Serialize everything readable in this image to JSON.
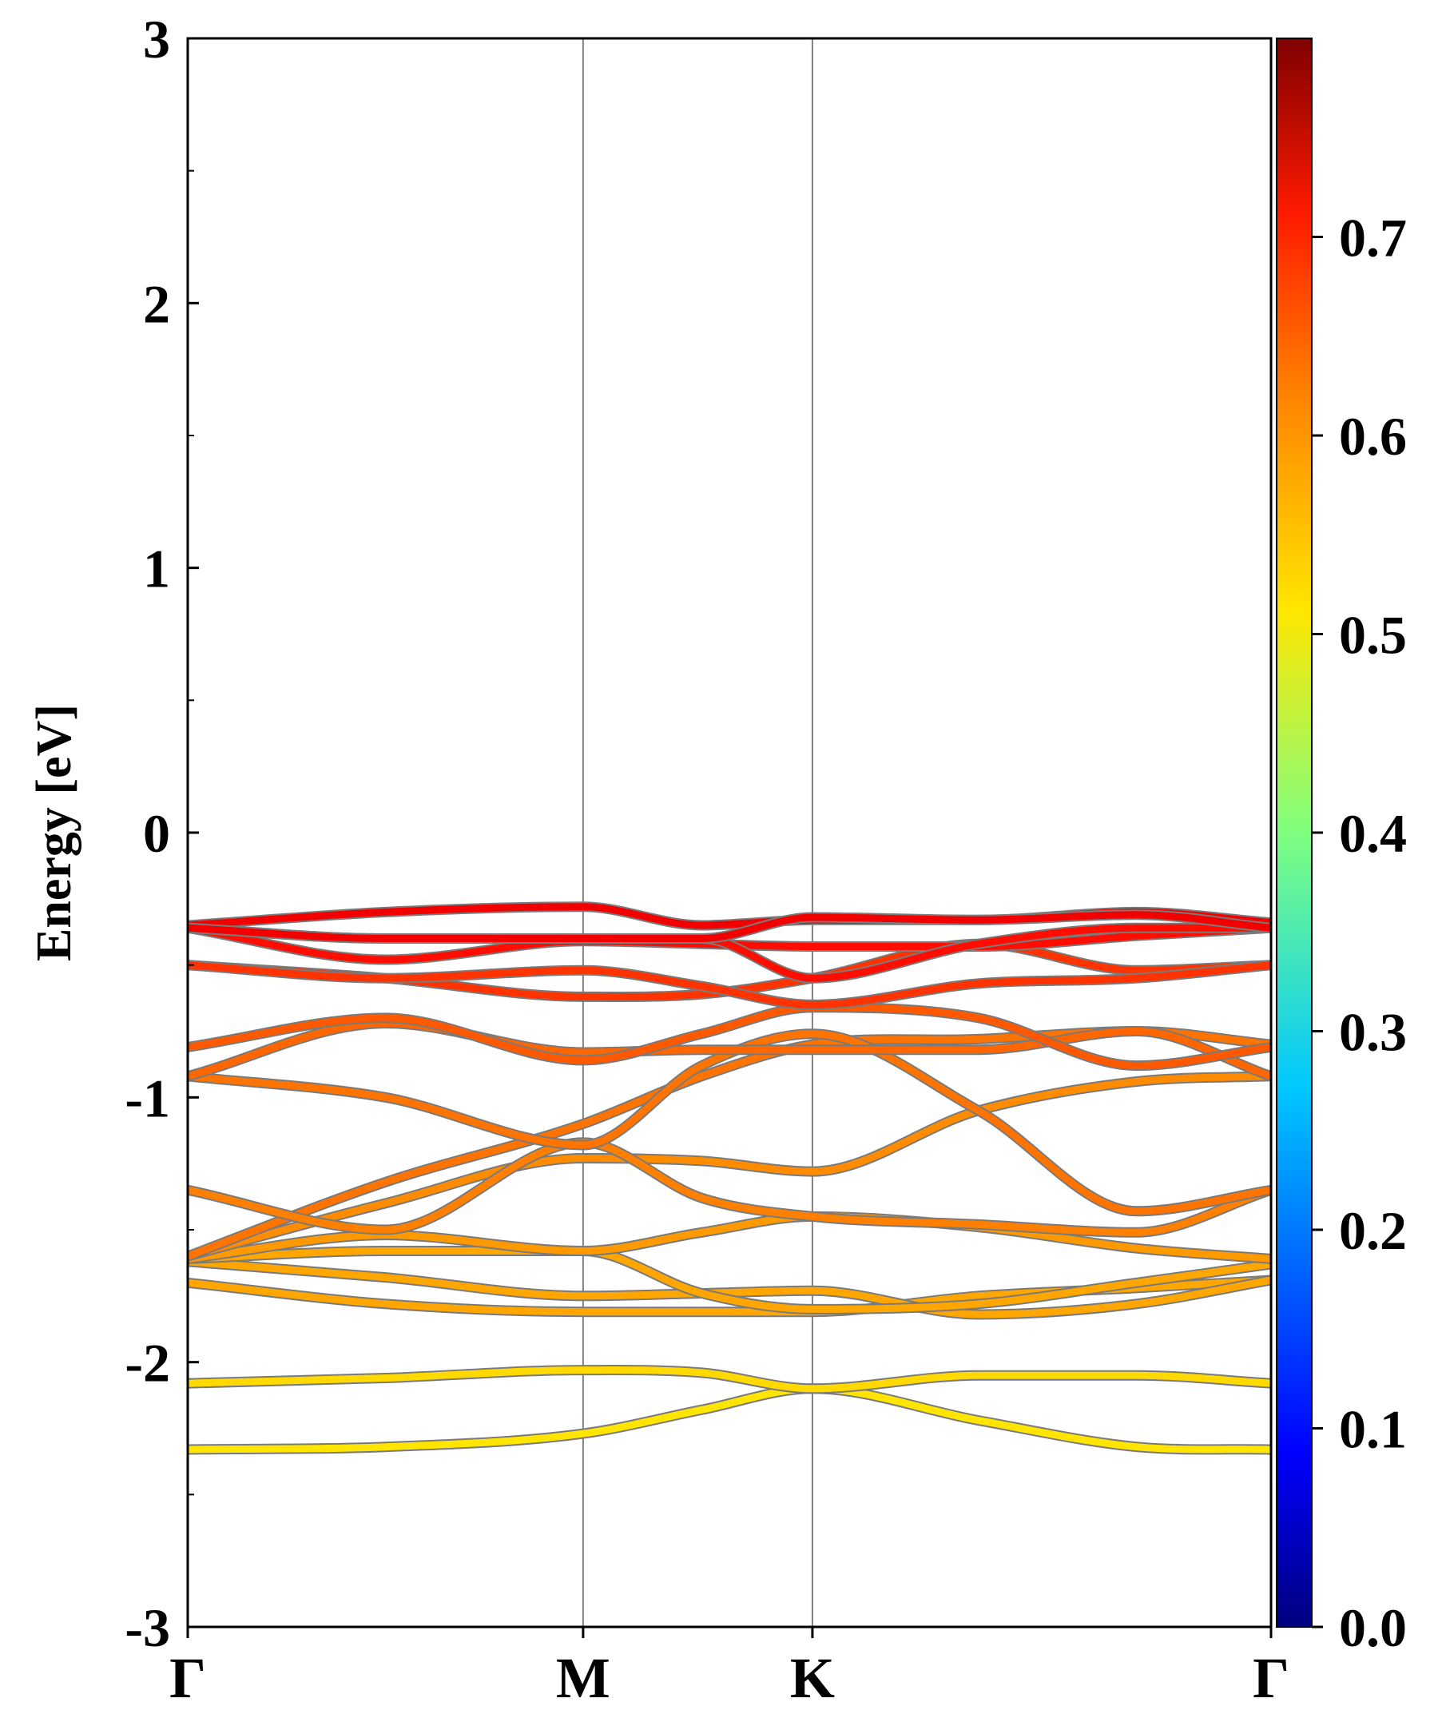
{
  "chart_data": {
    "type": "line",
    "ylabel": "Energy [eV]",
    "ylim": [
      -3,
      3
    ],
    "yticks": [
      -3,
      -2,
      -1,
      0,
      1,
      2,
      3
    ],
    "ytick_labels": [
      "-3",
      "-2",
      "-1",
      "0",
      "1",
      "2",
      "3"
    ],
    "y_minor_step": 0.5,
    "kpoints": [
      {
        "label": "Γ",
        "x": 0.0
      },
      {
        "label": "M",
        "x": 1.0
      },
      {
        "label": "K",
        "x": 1.58
      },
      {
        "label": "Γ",
        "x": 2.74
      }
    ],
    "xlim": [
      0,
      2.74
    ],
    "colorbar": {
      "colormap": "jet",
      "range": [
        0.0,
        0.8
      ],
      "ticks": [
        0.0,
        0.1,
        0.2,
        0.3,
        0.4,
        0.5,
        0.6,
        0.7
      ],
      "tick_labels": [
        "0.0",
        "0.1",
        "0.2",
        "0.3",
        "0.4",
        "0.5",
        "0.6",
        "0.7"
      ]
    },
    "grid": false,
    "bands": [
      {
        "x": [
          0,
          0.5,
          1.0,
          1.3,
          1.58,
          2.0,
          2.4,
          2.74
        ],
        "y": [
          -2.33,
          -2.32,
          -2.27,
          -2.18,
          -2.1,
          -2.22,
          -2.32,
          -2.33
        ],
        "c": 0.52
      },
      {
        "x": [
          0,
          0.5,
          1.0,
          1.3,
          1.58,
          2.0,
          2.4,
          2.74
        ],
        "y": [
          -2.08,
          -2.06,
          -2.03,
          -2.04,
          -2.1,
          -2.05,
          -2.05,
          -2.08
        ],
        "c": 0.53
      },
      {
        "x": [
          0,
          0.5,
          1.0,
          1.3,
          1.58,
          2.0,
          2.4,
          2.74
        ],
        "y": [
          -1.7,
          -1.78,
          -1.81,
          -1.81,
          -1.81,
          -1.75,
          -1.72,
          -1.69
        ],
        "c": 0.57
      },
      {
        "x": [
          0,
          0.5,
          1.0,
          1.3,
          1.58,
          2.0,
          2.4,
          2.74
        ],
        "y": [
          -1.62,
          -1.68,
          -1.75,
          -1.74,
          -1.73,
          -1.82,
          -1.78,
          -1.69
        ],
        "c": 0.57
      },
      {
        "x": [
          0,
          0.5,
          1.0,
          1.3,
          1.58,
          2.0,
          2.4,
          2.74
        ],
        "y": [
          -1.61,
          -1.58,
          -1.58,
          -1.74,
          -1.8,
          -1.78,
          -1.7,
          -1.63
        ],
        "c": 0.57
      },
      {
        "x": [
          0,
          0.5,
          1.0,
          1.3,
          1.58,
          2.0,
          2.4,
          2.74
        ],
        "y": [
          -1.61,
          -1.52,
          -1.58,
          -1.51,
          -1.45,
          -1.49,
          -1.57,
          -1.61
        ],
        "c": 0.58
      },
      {
        "x": [
          0,
          0.5,
          1.0,
          1.3,
          1.58,
          2.0,
          2.4,
          2.74
        ],
        "y": [
          -1.6,
          -1.4,
          -1.23,
          -1.24,
          -1.28,
          -1.05,
          -0.94,
          -0.92
        ],
        "c": 0.59
      },
      {
        "x": [
          0,
          0.5,
          1.0,
          1.3,
          1.58,
          2.0,
          2.4,
          2.74
        ],
        "y": [
          -1.6,
          -1.32,
          -1.1,
          -0.92,
          -0.8,
          -0.78,
          -0.75,
          -0.8
        ],
        "c": 0.61
      },
      {
        "x": [
          0,
          0.5,
          1.0,
          1.3,
          1.58,
          2.0,
          2.4,
          2.74
        ],
        "y": [
          -1.35,
          -1.5,
          -1.17,
          -1.38,
          -1.45,
          -1.48,
          -1.51,
          -1.35
        ],
        "c": 0.6
      },
      {
        "x": [
          0,
          0.5,
          1.0,
          1.3,
          1.58,
          2.0,
          2.4,
          2.74
        ],
        "y": [
          -0.92,
          -1.0,
          -1.18,
          -0.88,
          -0.76,
          -1.05,
          -1.43,
          -1.35
        ],
        "c": 0.61
      },
      {
        "x": [
          0,
          0.5,
          1.0,
          1.3,
          1.58,
          2.0,
          2.4,
          2.74
        ],
        "y": [
          -0.92,
          -0.72,
          -0.83,
          -0.82,
          -0.82,
          -0.82,
          -0.75,
          -0.92
        ],
        "c": 0.62
      },
      {
        "x": [
          0,
          0.5,
          1.0,
          1.3,
          1.58,
          2.0,
          2.4,
          2.74
        ],
        "y": [
          -0.81,
          -0.7,
          -0.86,
          -0.76,
          -0.66,
          -0.7,
          -0.88,
          -0.81
        ],
        "c": 0.63
      },
      {
        "x": [
          0,
          0.5,
          1.0,
          1.3,
          1.58,
          2.0,
          2.4,
          2.74
        ],
        "y": [
          -0.5,
          -0.55,
          -0.62,
          -0.61,
          -0.55,
          -0.42,
          -0.52,
          -0.5
        ],
        "c": 0.66
      },
      {
        "x": [
          0,
          0.5,
          1.0,
          1.3,
          1.58,
          2.0,
          2.4,
          2.74
        ],
        "y": [
          -0.5,
          -0.55,
          -0.52,
          -0.58,
          -0.65,
          -0.57,
          -0.55,
          -0.5
        ],
        "c": 0.66
      },
      {
        "x": [
          0,
          0.5,
          1.0,
          1.3,
          1.58,
          2.0,
          2.4,
          2.74
        ],
        "y": [
          -0.36,
          -0.48,
          -0.41,
          -0.42,
          -0.43,
          -0.43,
          -0.39,
          -0.36
        ],
        "c": 0.69
      },
      {
        "x": [
          0,
          0.5,
          1.0,
          1.3,
          1.58,
          2.0,
          2.4,
          2.74
        ],
        "y": [
          -0.36,
          -0.4,
          -0.4,
          -0.4,
          -0.55,
          -0.42,
          -0.36,
          -0.36
        ],
        "c": 0.69
      },
      {
        "x": [
          0,
          0.5,
          1.0,
          1.3,
          1.58,
          2.0,
          2.4,
          2.74
        ],
        "y": [
          -0.35,
          -0.3,
          -0.28,
          -0.35,
          -0.33,
          -0.33,
          -0.3,
          -0.34
        ],
        "c": 0.71
      },
      {
        "x": [
          0,
          0.5,
          1.0,
          1.3,
          1.58,
          2.0,
          2.4,
          2.74
        ],
        "y": [
          -0.36,
          -0.4,
          -0.4,
          -0.4,
          -0.32,
          -0.33,
          -0.31,
          -0.36
        ],
        "c": 0.71
      }
    ]
  }
}
